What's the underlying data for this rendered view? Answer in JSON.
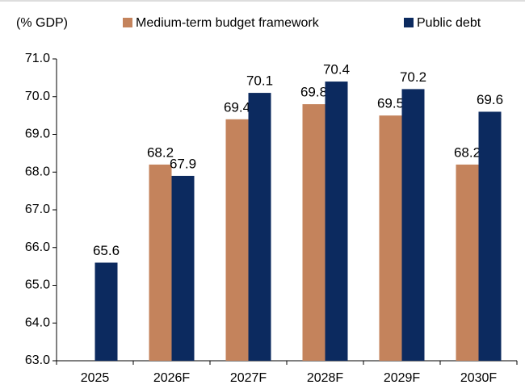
{
  "chart_data": {
    "type": "bar",
    "y_label": "(% GDP)",
    "categories": [
      "2025",
      "2026F",
      "2027F",
      "2028F",
      "2029F",
      "2030F"
    ],
    "series": [
      {
        "name": "Medium-term budget framework",
        "color": "#c4835c",
        "values": [
          null,
          68.2,
          69.4,
          69.8,
          69.5,
          68.2
        ]
      },
      {
        "name": "Public debt",
        "color": "#0c2a5f",
        "values": [
          65.6,
          67.9,
          70.1,
          70.4,
          70.2,
          69.6
        ]
      }
    ],
    "ylim": [
      63,
      71
    ],
    "yticks": [
      {
        "value": 63,
        "label": "63.0"
      },
      {
        "value": 64,
        "label": "64.0"
      },
      {
        "value": 65,
        "label": "65.0"
      },
      {
        "value": 66,
        "label": "66.0"
      },
      {
        "value": 67,
        "label": "67.0"
      },
      {
        "value": 68,
        "label": "68.0"
      },
      {
        "value": 69,
        "label": "69.0"
      },
      {
        "value": 70,
        "label": "70.0"
      },
      {
        "value": 71,
        "label": "71.0"
      }
    ],
    "grid": false
  }
}
